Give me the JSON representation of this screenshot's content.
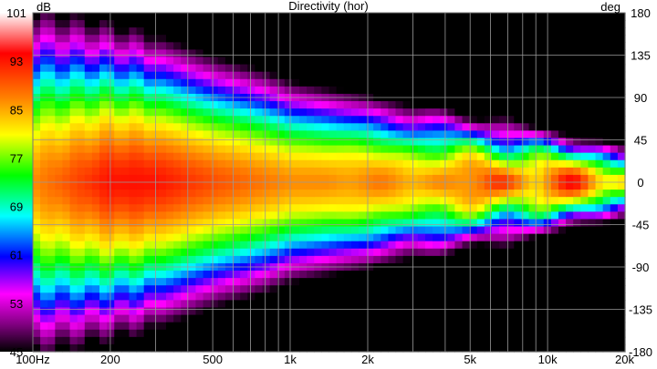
{
  "chart_data": {
    "type": "heatmap",
    "title": "Directivity (hor)",
    "colorbar_unit": "dB",
    "colorbar_ticks": [
      "101",
      "93",
      "85",
      "77",
      "69",
      "61",
      "53",
      "45"
    ],
    "colorbar_range": [
      45,
      101
    ],
    "y_unit": "deg",
    "y_ticks": [
      "180",
      "135",
      "90",
      "45",
      "0",
      "-45",
      "-90",
      "-135",
      "-180"
    ],
    "y_range": [
      -180,
      180
    ],
    "x_scale": "log",
    "x_range": [
      100,
      20000
    ],
    "x_ticks": [
      {
        "value": 100,
        "label": "100Hz"
      },
      {
        "value": 200,
        "label": "200"
      },
      {
        "value": 500,
        "label": "500"
      },
      {
        "value": 1000,
        "label": "1k"
      },
      {
        "value": 2000,
        "label": "2k"
      },
      {
        "value": 5000,
        "label": "5k"
      },
      {
        "value": 10000,
        "label": "10k"
      },
      {
        "value": 20000,
        "label": "20k"
      }
    ],
    "grid": true,
    "colors": {
      "scale": [
        "#000000",
        "#800080",
        "#ff00ff",
        "#0000ff",
        "#00ffff",
        "#00ff00",
        "#ffff00",
        "#ff8000",
        "#ff0000",
        "#ffffff"
      ],
      "grid": "#9a9a9a"
    },
    "profile_freqs": [
      100,
      200,
      300,
      500,
      800,
      1000,
      1500,
      2000,
      3000,
      4000,
      5000,
      7000,
      10000,
      14000,
      20000
    ],
    "beamwidth_deg": [
      78,
      66,
      62,
      55,
      50,
      46,
      42,
      40,
      35,
      33,
      30,
      28,
      22,
      20,
      18
    ],
    "peak_dB": [
      88,
      94,
      94,
      91,
      89,
      88,
      88,
      88,
      87,
      88,
      90,
      88,
      92,
      88,
      85
    ]
  }
}
